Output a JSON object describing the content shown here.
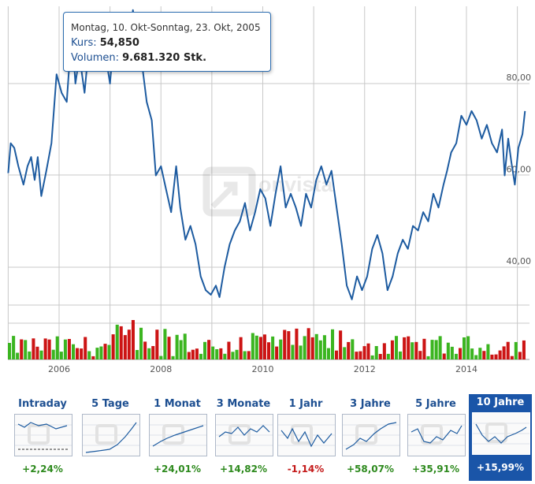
{
  "tooltip": {
    "date": "Montag, 10. Okt-Sonntag, 23. Okt, 2005",
    "kurs_label": "Kurs:",
    "kurs_value": "54,850",
    "volumen_label": "Volumen:",
    "volumen_value": "9.681.320 Stk."
  },
  "watermark": "onvista",
  "chart_data": {
    "type": "line",
    "title": "",
    "xlabel": "",
    "ylabel": "",
    "x_tick_labels": [
      "2006",
      "2008",
      "2010",
      "2012",
      "2014"
    ],
    "y_tick_labels": [
      "40,00",
      "60,00",
      "80,00"
    ],
    "x_range": [
      2005.0,
      2015.15
    ],
    "ylim": [
      25,
      97
    ],
    "grid": true,
    "line_color": "#1d5ba0",
    "series": [
      {
        "values": [
          [
            2005.0,
            60.5
          ],
          [
            2005.05,
            67.0
          ],
          [
            2005.12,
            66.0
          ],
          [
            2005.2,
            62.0
          ],
          [
            2005.3,
            58.0
          ],
          [
            2005.38,
            62.0
          ],
          [
            2005.45,
            64.0
          ],
          [
            2005.52,
            59.0
          ],
          [
            2005.58,
            64.0
          ],
          [
            2005.65,
            55.5
          ],
          [
            2005.75,
            61.0
          ],
          [
            2005.85,
            67.0
          ],
          [
            2005.95,
            82.0
          ],
          [
            2006.05,
            78.0
          ],
          [
            2006.15,
            76.0
          ],
          [
            2006.25,
            92.0
          ],
          [
            2006.32,
            80.0
          ],
          [
            2006.4,
            86.0
          ],
          [
            2006.5,
            78.0
          ],
          [
            2006.6,
            90.0
          ],
          [
            2006.7,
            84.0
          ],
          [
            2006.8,
            89.0
          ],
          [
            2006.9,
            87.0
          ],
          [
            2007.0,
            80.0
          ],
          [
            2007.1,
            93.0
          ],
          [
            2007.2,
            85.0
          ],
          [
            2007.3,
            95.0
          ],
          [
            2007.38,
            88.0
          ],
          [
            2007.45,
            96.0
          ],
          [
            2007.52,
            90.0
          ],
          [
            2007.62,
            85.0
          ],
          [
            2007.72,
            76.0
          ],
          [
            2007.82,
            72.0
          ],
          [
            2007.9,
            60.0
          ],
          [
            2008.0,
            62.0
          ],
          [
            2008.1,
            57.0
          ],
          [
            2008.2,
            52.0
          ],
          [
            2008.3,
            62.0
          ],
          [
            2008.38,
            53.0
          ],
          [
            2008.48,
            46.0
          ],
          [
            2008.58,
            49.0
          ],
          [
            2008.68,
            45.0
          ],
          [
            2008.78,
            38.0
          ],
          [
            2008.88,
            35.0
          ],
          [
            2008.98,
            34.0
          ],
          [
            2009.08,
            36.0
          ],
          [
            2009.15,
            33.5
          ],
          [
            2009.25,
            40.0
          ],
          [
            2009.35,
            45.0
          ],
          [
            2009.45,
            48.0
          ],
          [
            2009.55,
            50.0
          ],
          [
            2009.65,
            54.0
          ],
          [
            2009.75,
            48.0
          ],
          [
            2009.85,
            52.0
          ],
          [
            2009.95,
            57.0
          ],
          [
            2010.05,
            55.0
          ],
          [
            2010.15,
            49.0
          ],
          [
            2010.25,
            56.0
          ],
          [
            2010.35,
            62.0
          ],
          [
            2010.45,
            53.0
          ],
          [
            2010.55,
            56.0
          ],
          [
            2010.65,
            53.0
          ],
          [
            2010.75,
            49.0
          ],
          [
            2010.85,
            56.0
          ],
          [
            2010.95,
            53.0
          ],
          [
            2011.05,
            59.0
          ],
          [
            2011.15,
            62.0
          ],
          [
            2011.25,
            58.0
          ],
          [
            2011.35,
            61.0
          ],
          [
            2011.45,
            53.0
          ],
          [
            2011.55,
            45.0
          ],
          [
            2011.65,
            36.0
          ],
          [
            2011.75,
            33.0
          ],
          [
            2011.85,
            38.0
          ],
          [
            2011.95,
            35.0
          ],
          [
            2012.05,
            38.0
          ],
          [
            2012.15,
            44.0
          ],
          [
            2012.25,
            47.0
          ],
          [
            2012.35,
            43.0
          ],
          [
            2012.45,
            35.0
          ],
          [
            2012.55,
            38.0
          ],
          [
            2012.65,
            43.0
          ],
          [
            2012.75,
            46.0
          ],
          [
            2012.85,
            44.0
          ],
          [
            2012.95,
            49.0
          ],
          [
            2013.05,
            48.0
          ],
          [
            2013.15,
            52.0
          ],
          [
            2013.25,
            50.0
          ],
          [
            2013.35,
            56.0
          ],
          [
            2013.45,
            53.0
          ],
          [
            2013.55,
            58.0
          ],
          [
            2013.62,
            61.0
          ],
          [
            2013.7,
            65.0
          ],
          [
            2013.8,
            67.0
          ],
          [
            2013.9,
            73.0
          ],
          [
            2014.0,
            71.0
          ],
          [
            2014.1,
            74.0
          ],
          [
            2014.2,
            72.0
          ],
          [
            2014.3,
            68.0
          ],
          [
            2014.4,
            71.0
          ],
          [
            2014.5,
            67.0
          ],
          [
            2014.6,
            65.0
          ],
          [
            2014.7,
            70.0
          ],
          [
            2014.75,
            60.0
          ],
          [
            2014.82,
            68.0
          ],
          [
            2014.88,
            63.0
          ],
          [
            2014.95,
            58.0
          ],
          [
            2015.02,
            66.0
          ],
          [
            2015.1,
            69.0
          ],
          [
            2015.15,
            74.0
          ]
        ]
      }
    ],
    "volume_bars": {
      "count": 130,
      "colors": {
        "up": "#3bb520",
        "down": "#cc1414"
      }
    }
  },
  "tabs": [
    {
      "label": "Intraday",
      "change": "+2,24%",
      "direction": "pos"
    },
    {
      "label": "5 Tage",
      "change": "",
      "direction": "pos"
    },
    {
      "label": "1 Monat",
      "change": "+24,01%",
      "direction": "pos"
    },
    {
      "label": "3 Monate",
      "change": "+14,82%",
      "direction": "pos"
    },
    {
      "label": "1 Jahr",
      "change": "-1,14%",
      "direction": "neg"
    },
    {
      "label": "3 Jahre",
      "change": "+58,07%",
      "direction": "pos"
    },
    {
      "label": "5 Jahre",
      "change": "+35,91%",
      "direction": "pos"
    },
    {
      "label": "10 Jahre",
      "change": "+15,99%",
      "direction": "pos",
      "active": true
    }
  ]
}
